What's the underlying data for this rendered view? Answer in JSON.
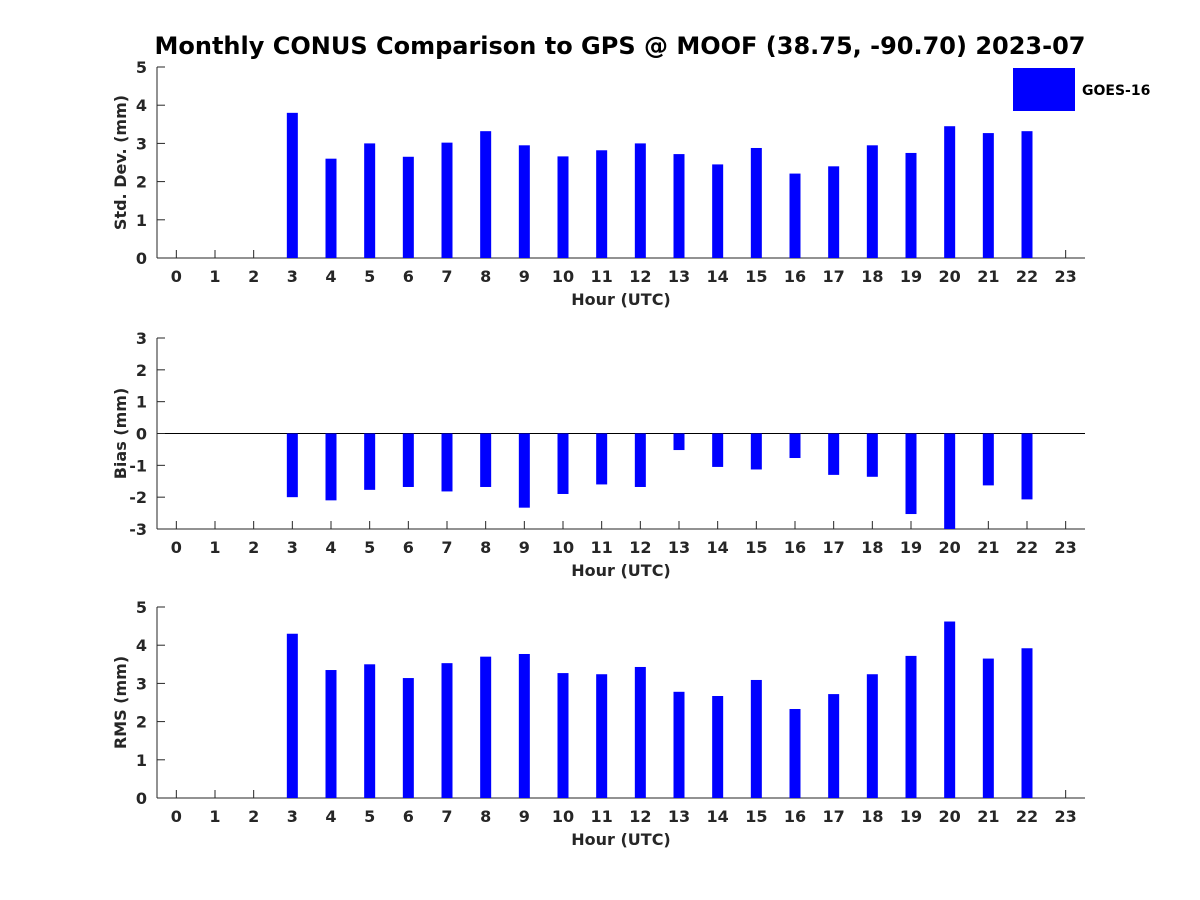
{
  "title": "Monthly CONUS Comparison to GPS @ MOOF (38.75, -90.70) 2023-07",
  "colors": {
    "bar": "#0000ff",
    "axis": "#262626",
    "background": "#ffffff"
  },
  "legend": {
    "label": "GOES-16",
    "placement": "top-right"
  },
  "chart_data": [
    {
      "type": "bar",
      "title": "Monthly CONUS Comparison to GPS @ MOOF (38.75, -90.70) 2023-07",
      "xlabel": "Hour (UTC)",
      "ylabel": "Std. Dev. (mm)",
      "x": [
        0,
        1,
        2,
        3,
        4,
        5,
        6,
        7,
        8,
        9,
        10,
        11,
        12,
        13,
        14,
        15,
        16,
        17,
        18,
        19,
        20,
        21,
        22,
        23
      ],
      "xlim": [
        -0.5,
        23.5
      ],
      "ylim": [
        0,
        5
      ],
      "yticks": [
        0,
        1,
        2,
        3,
        4,
        5
      ],
      "grid": false,
      "series": [
        {
          "name": "GOES-16",
          "values": [
            null,
            null,
            null,
            3.8,
            2.6,
            3.0,
            2.65,
            3.02,
            3.32,
            2.95,
            2.66,
            2.82,
            3.0,
            2.72,
            2.45,
            2.88,
            2.21,
            2.4,
            2.95,
            2.75,
            3.45,
            3.27,
            3.32,
            null
          ]
        }
      ]
    },
    {
      "type": "bar",
      "xlabel": "Hour (UTC)",
      "ylabel": "Bias (mm)",
      "x": [
        0,
        1,
        2,
        3,
        4,
        5,
        6,
        7,
        8,
        9,
        10,
        11,
        12,
        13,
        14,
        15,
        16,
        17,
        18,
        19,
        20,
        21,
        22,
        23
      ],
      "xlim": [
        -0.5,
        23.5
      ],
      "ylim": [
        -3,
        3
      ],
      "yticks": [
        -3,
        -2,
        -1,
        0,
        1,
        2,
        3
      ],
      "grid": false,
      "series": [
        {
          "name": "GOES-16",
          "values": [
            null,
            null,
            null,
            -2.0,
            -2.1,
            -1.77,
            -1.68,
            -1.82,
            -1.68,
            -2.33,
            -1.9,
            -1.6,
            -1.68,
            -0.52,
            -1.05,
            -1.13,
            -0.77,
            -1.3,
            -1.36,
            -2.53,
            -3.0,
            -1.63,
            -2.07,
            null
          ]
        }
      ]
    },
    {
      "type": "bar",
      "xlabel": "Hour (UTC)",
      "ylabel": "RMS (mm)",
      "x": [
        0,
        1,
        2,
        3,
        4,
        5,
        6,
        7,
        8,
        9,
        10,
        11,
        12,
        13,
        14,
        15,
        16,
        17,
        18,
        19,
        20,
        21,
        22,
        23
      ],
      "xlim": [
        -0.5,
        23.5
      ],
      "ylim": [
        0,
        5
      ],
      "yticks": [
        0,
        1,
        2,
        3,
        4,
        5
      ],
      "grid": false,
      "series": [
        {
          "name": "GOES-16",
          "values": [
            null,
            null,
            null,
            4.3,
            3.35,
            3.5,
            3.14,
            3.53,
            3.7,
            3.77,
            3.27,
            3.24,
            3.43,
            2.78,
            2.67,
            3.09,
            2.33,
            2.72,
            3.24,
            3.72,
            4.62,
            3.65,
            3.92,
            null
          ]
        }
      ]
    }
  ]
}
